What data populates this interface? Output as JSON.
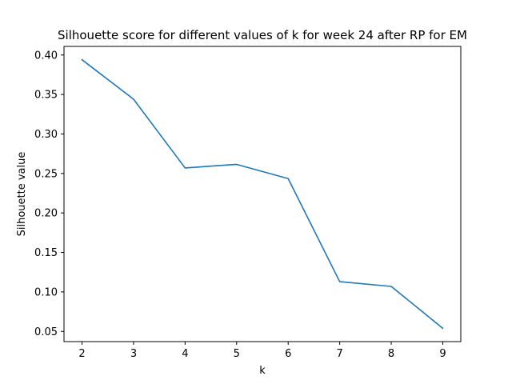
{
  "chart_data": {
    "type": "line",
    "title": "Silhouette score for different values of k for week 24 after RP for EM",
    "xlabel": "k",
    "ylabel": "Silhouette value",
    "x": [
      2,
      3,
      4,
      5,
      6,
      7,
      8,
      9
    ],
    "series": [
      {
        "values": [
          0.394,
          0.344,
          0.257,
          0.2615,
          0.2435,
          0.113,
          0.107,
          0.054
        ],
        "color": "#1f77b4"
      }
    ],
    "xlim": [
      1.65,
      9.35
    ],
    "ylim": [
      0.0371,
      0.4109
    ],
    "xticks": [
      "2",
      "3",
      "4",
      "5",
      "6",
      "7",
      "8",
      "9"
    ],
    "yticks": [
      "0.05",
      "0.10",
      "0.15",
      "0.20",
      "0.25",
      "0.30",
      "0.35",
      "0.40"
    ],
    "grid": false,
    "legend": "none"
  }
}
